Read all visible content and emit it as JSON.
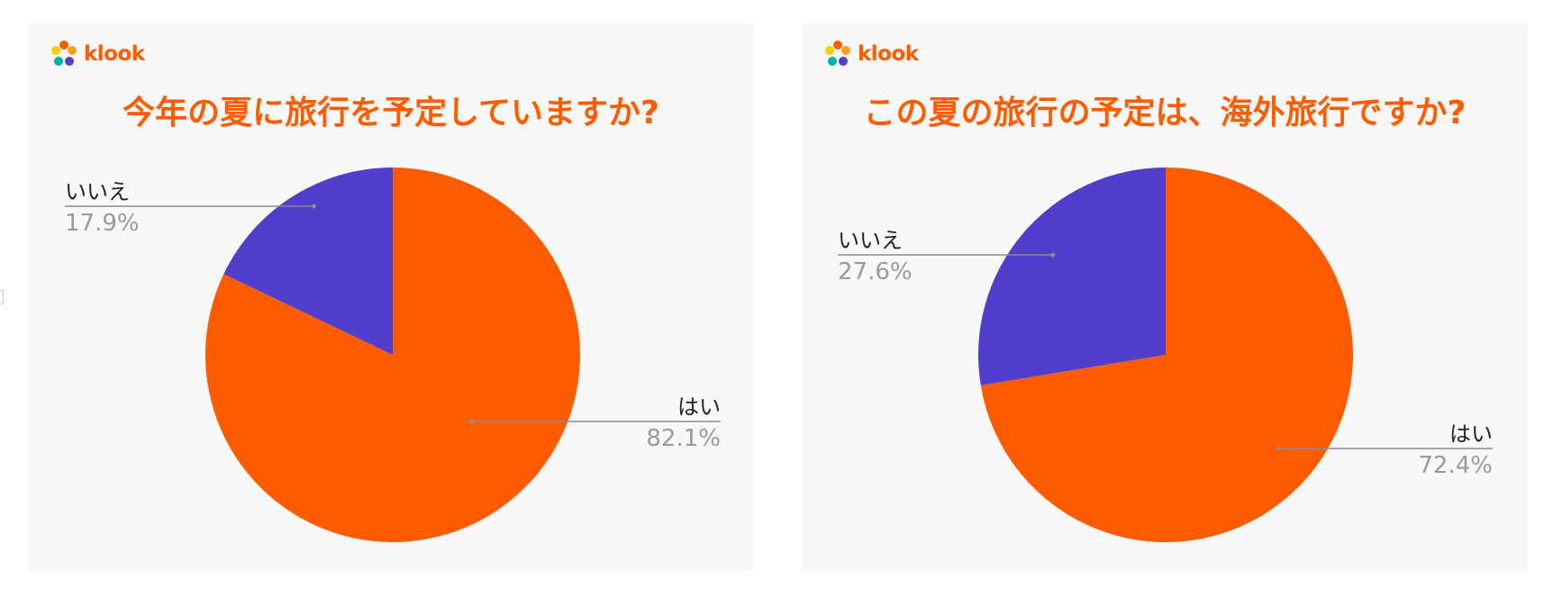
{
  "brand": {
    "name": "klook"
  },
  "colors": {
    "orange": "#ff5b00",
    "purple": "#4f3fcc",
    "label": "#222222",
    "percent": "#9a9a9a",
    "leader": "#8c8c8c"
  },
  "chart_data": [
    {
      "type": "pie",
      "title": "今年の夏に旅行を予定していますか?",
      "slices": [
        {
          "label": "はい",
          "value": 82.1,
          "display": "82.1%",
          "color": "#ff5b00"
        },
        {
          "label": "いいえ",
          "value": 17.9,
          "display": "17.9%",
          "color": "#4f3fcc"
        }
      ]
    },
    {
      "type": "pie",
      "title": "この夏の旅行の予定は、海外旅行ですか?",
      "slices": [
        {
          "label": "はい",
          "value": 72.4,
          "display": "72.4%",
          "color": "#ff5b00"
        },
        {
          "label": "いいえ",
          "value": 27.6,
          "display": "27.6%",
          "color": "#4f3fcc"
        }
      ]
    }
  ]
}
